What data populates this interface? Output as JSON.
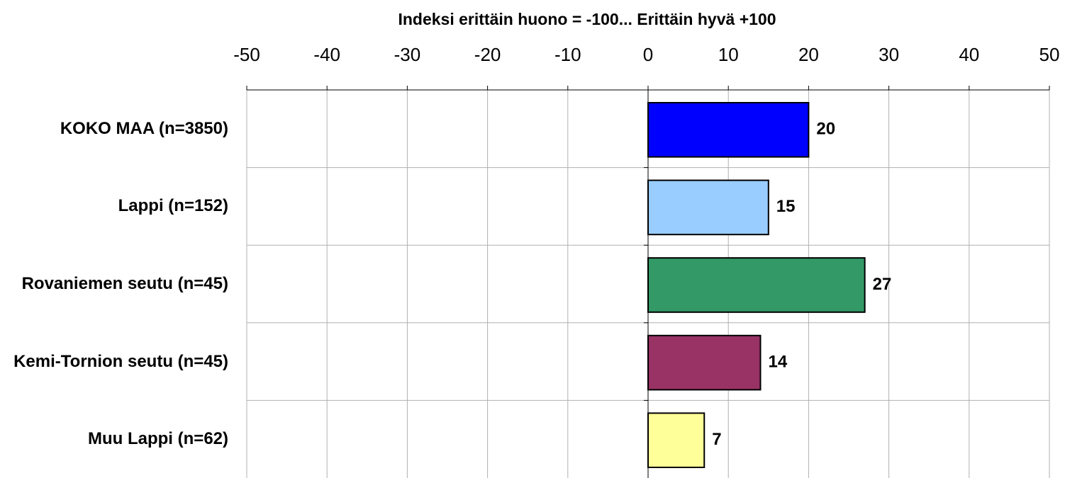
{
  "chart_data": {
    "type": "bar",
    "orientation": "horizontal",
    "title": "Indeksi erittäin huono = -100... Erittäin hyvä +100",
    "categories": [
      "KOKO MAA (n=3850)",
      "Lappi (n=152)",
      "Rovaniemen seutu (n=45)",
      "Kemi-Tornion seutu (n=45)",
      "Muu Lappi (n=62)"
    ],
    "values": [
      20,
      15,
      27,
      14,
      7
    ],
    "colors": [
      "#0000ff",
      "#99ccff",
      "#339966",
      "#993366",
      "#ffff99"
    ],
    "xlim": [
      -50,
      50
    ],
    "xticks": [
      -50,
      -40,
      -30,
      -20,
      -10,
      0,
      10,
      20,
      30,
      40,
      50
    ],
    "grid": true
  }
}
